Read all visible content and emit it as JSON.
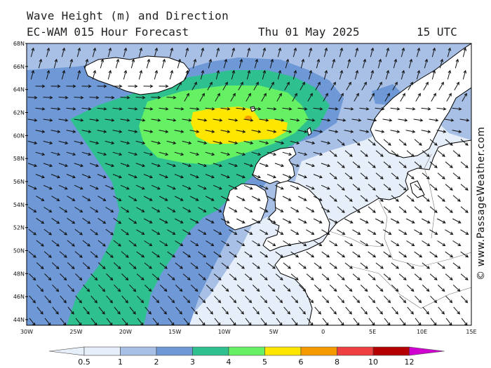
{
  "header": {
    "title": "Wave Height (m) and Direction",
    "model": "EC-WAM 015 Hour Forecast",
    "date": "Thu 01 May 2025",
    "time": "15 UTC"
  },
  "credit": "© www.PassageWeather.com",
  "map": {
    "lat_labels": [
      "68N",
      "66N",
      "64N",
      "62N",
      "60N",
      "58N",
      "56N",
      "54N",
      "52N",
      "50N",
      "48N",
      "46N",
      "44N"
    ],
    "lon_labels": [
      "30W",
      "25W",
      "20W",
      "15W",
      "10W",
      "5W",
      "0",
      "5E",
      "10E",
      "15E"
    ],
    "lat_range": [
      43,
      68
    ],
    "lon_range": [
      -30,
      15
    ]
  },
  "legend": {
    "ticks": [
      "0.5",
      "1",
      "2",
      "3",
      "4",
      "5",
      "6",
      "8",
      "10",
      "12"
    ],
    "colors": [
      "#e6eefa",
      "#a8c0e6",
      "#6f98d6",
      "#2ec08f",
      "#66f064",
      "#ffe600",
      "#f59a00",
      "#ee4040",
      "#b40000",
      "#d000d0"
    ],
    "land_color": "#ffffff",
    "arrow_color": "#111111"
  }
}
